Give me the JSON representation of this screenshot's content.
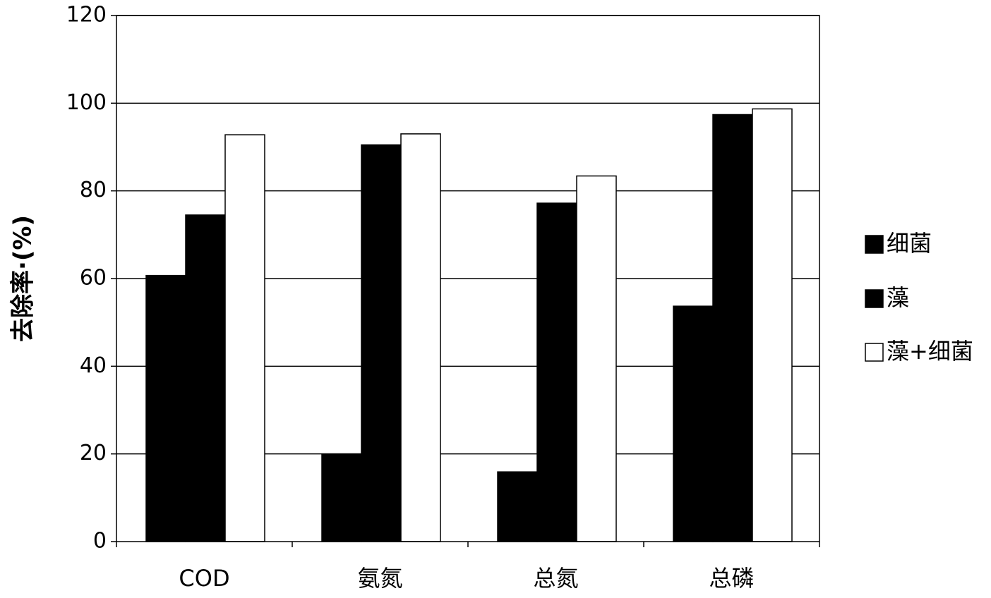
{
  "chart_data": {
    "type": "bar",
    "title": "",
    "xlabel": "",
    "ylabel": "去除率·(%)",
    "ylim": [
      0,
      120
    ],
    "yticks": [
      0,
      20,
      40,
      60,
      80,
      100,
      120
    ],
    "grid": true,
    "legend_position": "right",
    "categories": [
      "COD",
      "氨氮",
      "总氮",
      "总磷"
    ],
    "series": [
      {
        "name": "细菌",
        "color": "#000000",
        "values": [
          60.7,
          20.0,
          15.9,
          53.7
        ]
      },
      {
        "name": "藻",
        "color": "#000000",
        "values": [
          74.5,
          90.5,
          77.2,
          97.4
        ]
      },
      {
        "name": "藻+细菌",
        "color": "#ffffff",
        "values": [
          92.8,
          93.0,
          83.4,
          98.7
        ]
      }
    ]
  }
}
